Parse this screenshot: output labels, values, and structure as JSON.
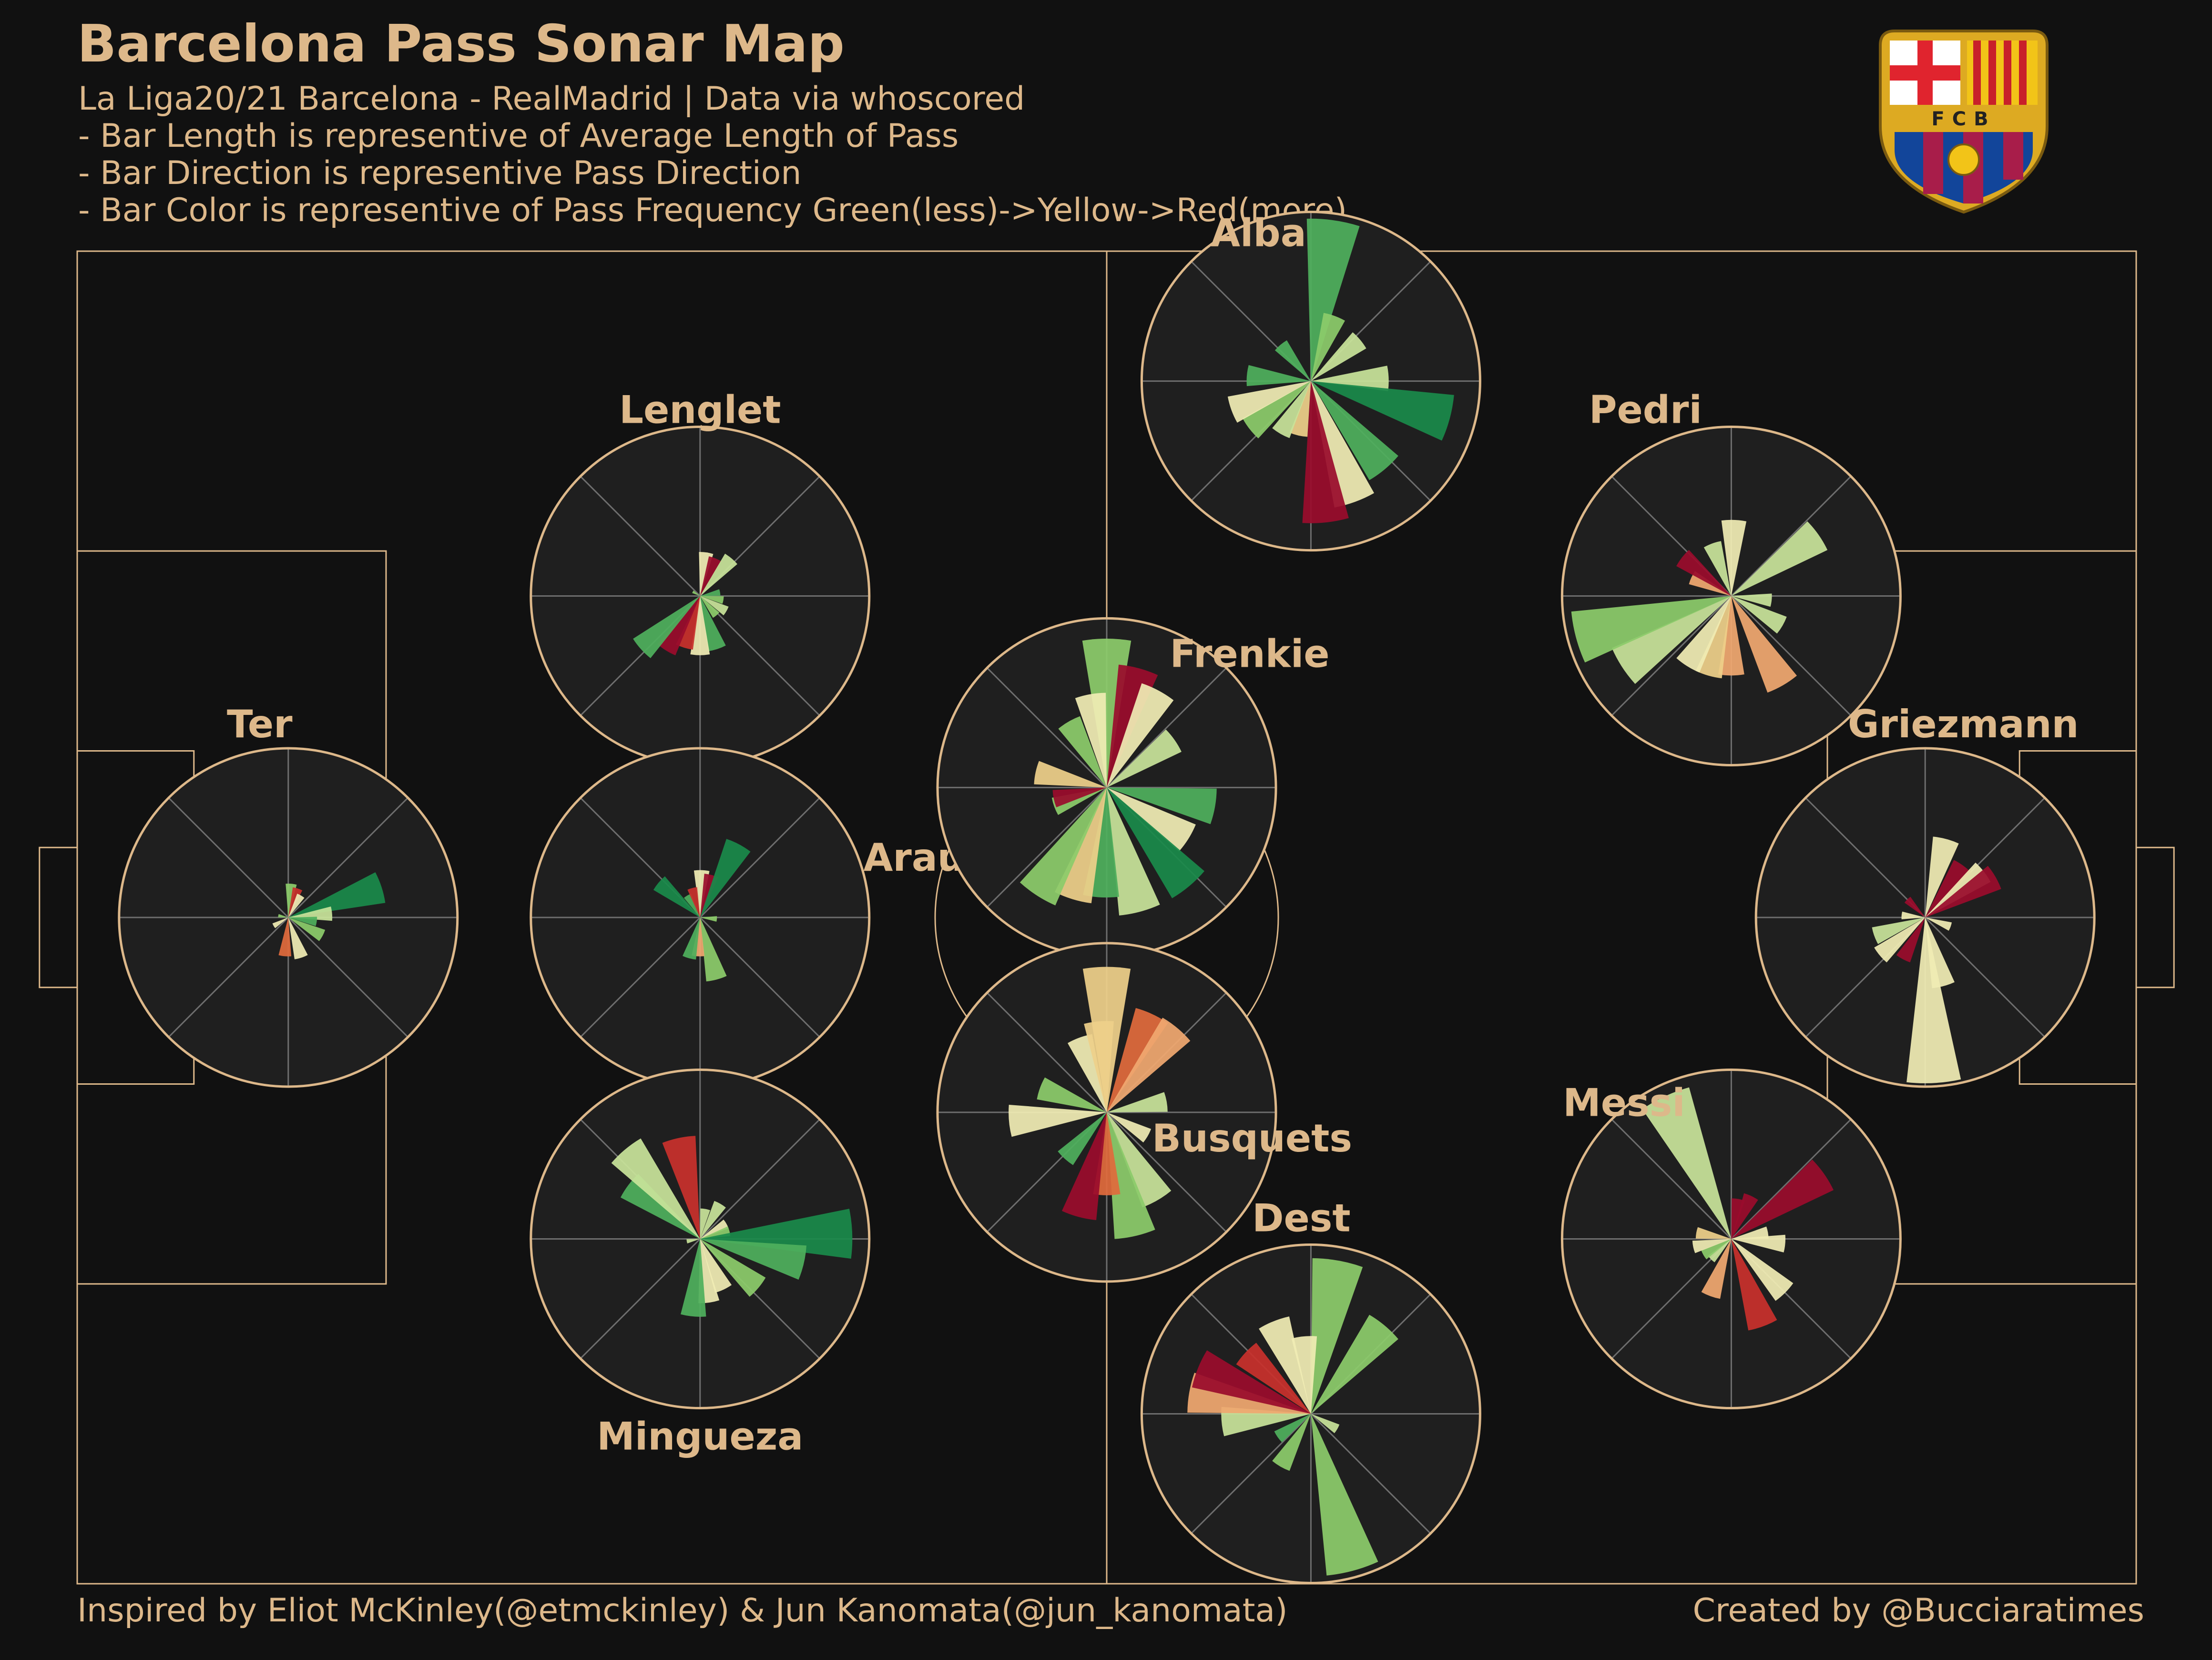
{
  "header": {
    "title": "Barcelona Pass Sonar Map",
    "subtitle_lines": [
      "La Liga20/21 Barcelona - RealMadrid  | Data via whoscored",
      "- Bar Length is representive of Average Length of Pass",
      "- Bar Direction is representive Pass Direction",
      "- Bar Color is representive of Pass Frequency Green(less)->Yellow->Red(more)"
    ]
  },
  "footer": {
    "credit_left": "Inspired by Eliot McKinley(@etmckinley) & Jun Kanomata(@jun_kanomata)",
    "credit_right": "Created by @Bucciaratimes"
  },
  "logo": {
    "text": "FCB"
  },
  "colors": {
    "background": "#111111",
    "pitch_lines": "#DDB88A",
    "sonar_fill": "#1F1F1F",
    "sonar_grid": "#6E6E6E",
    "scale": [
      "#1A8A4A",
      "#4FAF5C",
      "#8CCB6B",
      "#C8E39A",
      "#F0ECB4",
      "#EED08A",
      "#F0A870",
      "#E06A3C",
      "#C8302C",
      "#9A0C2C"
    ]
  },
  "chart_data": {
    "type": "pass_sonar",
    "direction_bins": 16,
    "frequency_scale": "green(less) -> yellow -> red(more)",
    "pitch_x_range": [
      0,
      120
    ],
    "pitch_y_range": [
      0,
      80
    ],
    "players": [
      {
        "name": "Ter",
        "x": 12.3,
        "y": 40,
        "bars": [
          {
            "angle": 5,
            "length": 2,
            "freq": 0.2
          },
          {
            "angle": 18,
            "length": 1.8,
            "freq": 0.9
          },
          {
            "angle": 30,
            "length": 1.5,
            "freq": 0.45
          },
          {
            "angle": 72,
            "length": 5.8,
            "freq": 0.05
          },
          {
            "angle": 85,
            "length": 2.6,
            "freq": 0.3
          },
          {
            "angle": 98,
            "length": 1.7,
            "freq": 0.15
          },
          {
            "angle": 118,
            "length": 2.3,
            "freq": 0.25
          },
          {
            "angle": 162,
            "length": 2.5,
            "freq": 0.45
          },
          {
            "angle": 185,
            "length": 2.3,
            "freq": 0.8
          },
          {
            "angle": 240,
            "length": 1,
            "freq": 0.4
          },
          {
            "angle": 280,
            "length": 0.6,
            "freq": 0.2
          }
        ]
      },
      {
        "name": "Lenglet",
        "x": 36.3,
        "y": 59.3,
        "bars": [
          {
            "angle": 8,
            "length": 2.6,
            "freq": 0.45
          },
          {
            "angle": 22,
            "length": 2.4,
            "freq": 0.95
          },
          {
            "angle": 40,
            "length": 2.9,
            "freq": 0.35
          },
          {
            "angle": 80,
            "length": 1.2,
            "freq": 0.1
          },
          {
            "angle": 100,
            "length": 1.4,
            "freq": 0.2
          },
          {
            "angle": 120,
            "length": 1.8,
            "freq": 0.3
          },
          {
            "angle": 140,
            "length": 1.5,
            "freq": 0.25
          },
          {
            "angle": 162,
            "length": 3.3,
            "freq": 0.15
          },
          {
            "angle": 180,
            "length": 3.5,
            "freq": 0.45
          },
          {
            "angle": 197,
            "length": 3.2,
            "freq": 0.9
          },
          {
            "angle": 212,
            "length": 3.8,
            "freq": 0.95
          },
          {
            "angle": 228,
            "length": 4.7,
            "freq": 0.1
          },
          {
            "angle": 300,
            "length": 0.5,
            "freq": 0.2
          }
        ]
      },
      {
        "name": "Araujo",
        "x": 36.3,
        "y": 40,
        "bars": [
          {
            "angle": 2,
            "length": 2.8,
            "freq": 0.4
          },
          {
            "angle": 15,
            "length": 2.6,
            "freq": 0.95
          },
          {
            "angle": 28,
            "length": 4.9,
            "freq": 0.05
          },
          {
            "angle": 95,
            "length": 1,
            "freq": 0.2
          },
          {
            "angle": 165,
            "length": 3.8,
            "freq": 0.25
          },
          {
            "angle": 183,
            "length": 2.3,
            "freq": 0.7
          },
          {
            "angle": 195,
            "length": 2.5,
            "freq": 0.15
          },
          {
            "angle": 310,
            "length": 3.2,
            "freq": 0.05
          },
          {
            "angle": 330,
            "length": 1.5,
            "freq": 0.15
          },
          {
            "angle": 345,
            "length": 1.8,
            "freq": 0.9
          }
        ]
      },
      {
        "name": "Mingueza",
        "x": 36.3,
        "y": 20.7,
        "bars": [
          {
            "angle": 10,
            "length": 1.8,
            "freq": 0.35
          },
          {
            "angle": 30,
            "length": 2.4,
            "freq": 0.3
          },
          {
            "angle": 60,
            "length": 1.8,
            "freq": 0.45
          },
          {
            "angle": 75,
            "length": 1.8,
            "freq": 0.2
          },
          {
            "angle": 88,
            "length": 9,
            "freq": 0.05
          },
          {
            "angle": 103,
            "length": 6.3,
            "freq": 0.15
          },
          {
            "angle": 130,
            "length": 4.5,
            "freq": 0.2
          },
          {
            "angle": 155,
            "length": 3.3,
            "freq": 0.45
          },
          {
            "angle": 172,
            "length": 3.8,
            "freq": 0.4
          },
          {
            "angle": 185,
            "length": 4.6,
            "freq": 0.15
          },
          {
            "angle": 260,
            "length": 0.8,
            "freq": 0.3
          },
          {
            "angle": 307,
            "length": 5.3,
            "freq": 0.1
          },
          {
            "angle": 320,
            "length": 6.9,
            "freq": 0.35
          },
          {
            "angle": 348,
            "length": 6.1,
            "freq": 0.9
          }
        ]
      },
      {
        "name": "Frenkie",
        "x": 60,
        "y": 47.8,
        "bars": [
          {
            "angle": 0,
            "length": 8.8,
            "freq": 0.25
          },
          {
            "angle": 15,
            "length": 7.3,
            "freq": 0.95
          },
          {
            "angle": 28,
            "length": 6.5,
            "freq": 0.45
          },
          {
            "angle": 55,
            "length": 4.9,
            "freq": 0.3
          },
          {
            "angle": 100,
            "length": 6.5,
            "freq": 0.15
          },
          {
            "angle": 122,
            "length": 5.7,
            "freq": 0.4
          },
          {
            "angle": 140,
            "length": 7.6,
            "freq": 0.05
          },
          {
            "angle": 165,
            "length": 7.6,
            "freq": 0.3
          },
          {
            "angle": 183,
            "length": 6.5,
            "freq": 0.15
          },
          {
            "angle": 197,
            "length": 6.9,
            "freq": 0.55
          },
          {
            "angle": 213,
            "length": 7.6,
            "freq": 0.25
          },
          {
            "angle": 250,
            "length": 3.3,
            "freq": 0.2
          },
          {
            "angle": 258,
            "length": 3.2,
            "freq": 0.95
          },
          {
            "angle": 282,
            "length": 4.3,
            "freq": 0.55
          },
          {
            "angle": 330,
            "length": 4.5,
            "freq": 0.25
          },
          {
            "angle": 350,
            "length": 5.6,
            "freq": 0.4
          }
        ]
      },
      {
        "name": "Alba",
        "x": 71.9,
        "y": 72.2,
        "bars": [
          {
            "angle": 8,
            "length": 9.6,
            "freq": 0.1
          },
          {
            "angle": 20,
            "length": 4.1,
            "freq": 0.2
          },
          {
            "angle": 50,
            "length": 3.8,
            "freq": 0.3
          },
          {
            "angle": 88,
            "length": 4.6,
            "freq": 0.3
          },
          {
            "angle": 105,
            "length": 8.5,
            "freq": 0.05
          },
          {
            "angle": 140,
            "length": 6.8,
            "freq": 0.1
          },
          {
            "angle": 160,
            "length": 7.6,
            "freq": 0.4
          },
          {
            "angle": 174,
            "length": 8.4,
            "freq": 0.95
          },
          {
            "angle": 193,
            "length": 3.3,
            "freq": 0.6
          },
          {
            "angle": 210,
            "length": 3.6,
            "freq": 0.35
          },
          {
            "angle": 232,
            "length": 4.6,
            "freq": 0.25
          },
          {
            "angle": 250,
            "length": 5,
            "freq": 0.45
          },
          {
            "angle": 275,
            "length": 3.8,
            "freq": 0.15
          },
          {
            "angle": 320,
            "length": 2.8,
            "freq": 0.1
          }
        ]
      },
      {
        "name": "Busquets",
        "x": 60,
        "y": 28.3,
        "bars": [
          {
            "angle": 0,
            "length": 8.6,
            "freq": 0.5
          },
          {
            "angle": 25,
            "length": 6.4,
            "freq": 0.8
          },
          {
            "angle": 40,
            "length": 6.5,
            "freq": 0.7
          },
          {
            "angle": 80,
            "length": 3.6,
            "freq": 0.3
          },
          {
            "angle": 120,
            "length": 2.8,
            "freq": 0.4
          },
          {
            "angle": 150,
            "length": 6,
            "freq": 0.3
          },
          {
            "angle": 167,
            "length": 7.5,
            "freq": 0.25
          },
          {
            "angle": 180,
            "length": 4.9,
            "freq": 0.8
          },
          {
            "angle": 195,
            "length": 6.4,
            "freq": 0.95
          },
          {
            "angle": 222,
            "length": 3.7,
            "freq": 0.1
          },
          {
            "angle": 265,
            "length": 5.8,
            "freq": 0.45
          },
          {
            "angle": 290,
            "length": 4.2,
            "freq": 0.25
          },
          {
            "angle": 340,
            "length": 4.7,
            "freq": 0.45
          },
          {
            "angle": 355,
            "length": 5.4,
            "freq": 0.5
          }
        ]
      },
      {
        "name": "Dest",
        "x": 71.9,
        "y": 10.2,
        "bars": [
          {
            "angle": 10,
            "length": 9.2,
            "freq": 0.25
          },
          {
            "angle": 40,
            "length": 6.8,
            "freq": 0.2
          },
          {
            "angle": 120,
            "length": 1.8,
            "freq": 0.3
          },
          {
            "angle": 165,
            "length": 9.6,
            "freq": 0.25
          },
          {
            "angle": 210,
            "length": 3.6,
            "freq": 0.2
          },
          {
            "angle": 235,
            "length": 2.4,
            "freq": 0.15
          },
          {
            "angle": 265,
            "length": 5.3,
            "freq": 0.3
          },
          {
            "angle": 280,
            "length": 7.3,
            "freq": 0.7
          },
          {
            "angle": 292,
            "length": 7.2,
            "freq": 0.95
          },
          {
            "angle": 313,
            "length": 5.3,
            "freq": 0.9
          },
          {
            "angle": 338,
            "length": 5.9,
            "freq": 0.4
          },
          {
            "angle": 355,
            "length": 4.6,
            "freq": 0.45
          }
        ]
      },
      {
        "name": "Pedri",
        "x": 96.4,
        "y": 59.3,
        "bars": [
          {
            "angle": 2,
            "length": 4.5,
            "freq": 0.4
          },
          {
            "angle": 55,
            "length": 6.3,
            "freq": 0.3
          },
          {
            "angle": 96,
            "length": 2.4,
            "freq": 0.3
          },
          {
            "angle": 120,
            "length": 3.5,
            "freq": 0.3
          },
          {
            "angle": 150,
            "length": 6.1,
            "freq": 0.7
          },
          {
            "angle": 180,
            "length": 4.7,
            "freq": 0.7
          },
          {
            "angle": 196,
            "length": 4.9,
            "freq": 0.5
          },
          {
            "angle": 212,
            "length": 4.9,
            "freq": 0.4
          },
          {
            "angle": 237,
            "length": 7.7,
            "freq": 0.3
          },
          {
            "angle": 255,
            "length": 9.5,
            "freq": 0.25
          },
          {
            "angle": 295,
            "length": 2.6,
            "freq": 0.7
          },
          {
            "angle": 308,
            "length": 3.7,
            "freq": 0.95
          },
          {
            "angle": 340,
            "length": 3.3,
            "freq": 0.3
          }
        ]
      },
      {
        "name": "Griezmann",
        "x": 107.7,
        "y": 40,
        "bars": [
          {
            "angle": 15,
            "length": 4.8,
            "freq": 0.4
          },
          {
            "angle": 36,
            "length": 3.8,
            "freq": 0.95
          },
          {
            "angle": 52,
            "length": 4.4,
            "freq": 0.4
          },
          {
            "angle": 60,
            "length": 4.8,
            "freq": 0.95
          },
          {
            "angle": 110,
            "length": 1.6,
            "freq": 0.4
          },
          {
            "angle": 165,
            "length": 4.2,
            "freq": 0.4
          },
          {
            "angle": 177,
            "length": 9.8,
            "freq": 0.4
          },
          {
            "angle": 208,
            "length": 2.8,
            "freq": 0.95
          },
          {
            "angle": 230,
            "length": 3.5,
            "freq": 0.4
          },
          {
            "angle": 250,
            "length": 3.2,
            "freq": 0.35
          },
          {
            "angle": 275,
            "length": 1.4,
            "freq": 0.4
          },
          {
            "angle": 315,
            "length": 1.5,
            "freq": 0.95
          }
        ]
      },
      {
        "name": "Messi",
        "x": 96.4,
        "y": 20.7,
        "bars": [
          {
            "angle": 10,
            "length": 2.4,
            "freq": 0.95
          },
          {
            "angle": 25,
            "length": 2.8,
            "freq": 0.95
          },
          {
            "angle": 55,
            "length": 6.7,
            "freq": 0.95
          },
          {
            "angle": 80,
            "length": 2.2,
            "freq": 0.4
          },
          {
            "angle": 95,
            "length": 3.2,
            "freq": 0.45
          },
          {
            "angle": 135,
            "length": 4.5,
            "freq": 0.4
          },
          {
            "angle": 160,
            "length": 5.5,
            "freq": 0.9
          },
          {
            "angle": 200,
            "length": 3.6,
            "freq": 0.7
          },
          {
            "angle": 225,
            "length": 1.7,
            "freq": 0.35
          },
          {
            "angle": 240,
            "length": 1.9,
            "freq": 0.2
          },
          {
            "angle": 258,
            "length": 2.3,
            "freq": 0.4
          },
          {
            "angle": 280,
            "length": 2.1,
            "freq": 0.55
          },
          {
            "angle": 335,
            "length": 9.3,
            "freq": 0.3
          }
        ]
      }
    ]
  }
}
